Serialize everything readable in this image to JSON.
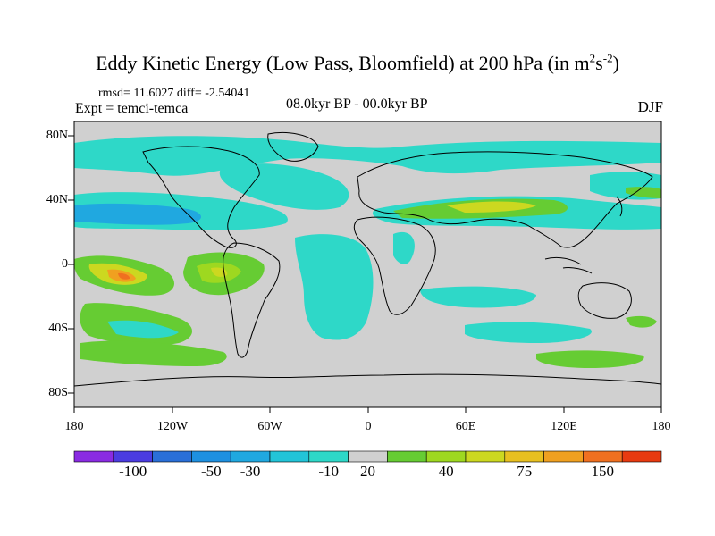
{
  "title": {
    "main": "Eddy Kinetic Energy (Low Pass, Bloomfield) at 200 hPa (in m",
    "sup1": "2",
    "mid": "s",
    "sup2": "-2",
    "close": ")"
  },
  "stats": "rmsd= 11.6027 diff= -2.54041",
  "experiment": "Expt = temci-temca",
  "period": "08.0kyr BP - 00.0kyr BP",
  "season": "DJF",
  "axes": {
    "lat_labels": [
      "80N",
      "40N",
      "0",
      "40S",
      "80S"
    ],
    "lon_labels": [
      "180",
      "120W",
      "60W",
      "0",
      "60E",
      "120E",
      "180"
    ]
  },
  "colorbar": {
    "colors": [
      "#8a2be2",
      "#4b3ce0",
      "#2a6fd8",
      "#1e90e0",
      "#20a8e0",
      "#22c4d8",
      "#2ed8c8",
      "#d0d0d0",
      "#66cc33",
      "#9ed820",
      "#ccd820",
      "#e8c020",
      "#f0a020",
      "#f07020",
      "#e83a10"
    ],
    "labels": [
      "-100",
      "-50",
      "-30",
      "-10",
      "20",
      "40",
      "75",
      "150"
    ]
  },
  "map": {
    "background_color": "#d0d0d0",
    "field_colors": {
      "cyan": "#2ed8c8",
      "teal": "#22c4d8",
      "blue": "#20a8e0",
      "green": "#66cc33",
      "lime": "#9ed820",
      "yellow": "#ccd820",
      "orange": "#f0a020",
      "red": "#f07020"
    }
  }
}
